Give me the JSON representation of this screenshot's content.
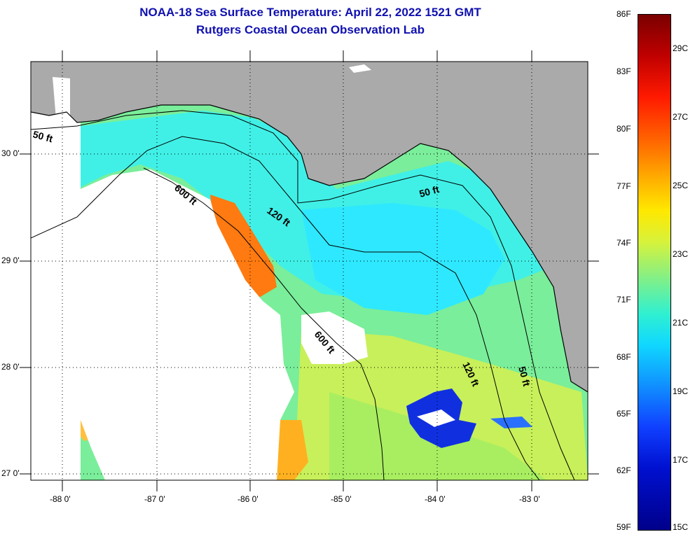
{
  "title_line1": "NOAA-18 Sea Surface Temperature:  April 22, 2022 1521 GMT",
  "title_line2": "Rutgers Coastal Ocean Observation Lab",
  "colors": {
    "land": "#aaaaaa",
    "cloud": "#ffffff",
    "text": "#1010b0"
  },
  "lat_labels": [
    "30 0'",
    "29 0'",
    "28 0'",
    "27 0'"
  ],
  "lon_labels": [
    "-88 0'",
    "-87 0'",
    "-86 0'",
    "-85 0'",
    "-84 0'",
    "-83 0'"
  ],
  "isobaths": [
    {
      "label": "50 ft"
    },
    {
      "label": "600 ft"
    },
    {
      "label": "120 ft"
    },
    {
      "label": "50 ft"
    },
    {
      "label": "600 ft"
    },
    {
      "label": "120 ft"
    },
    {
      "label": "50 ft"
    }
  ],
  "legend_f": [
    "86F",
    "83F",
    "80F",
    "77F",
    "74F",
    "71F",
    "68F",
    "65F",
    "62F",
    "59F"
  ],
  "legend_c": [
    "29C",
    "27C",
    "25C",
    "23C",
    "21C",
    "19C",
    "17C",
    "15C"
  ]
}
